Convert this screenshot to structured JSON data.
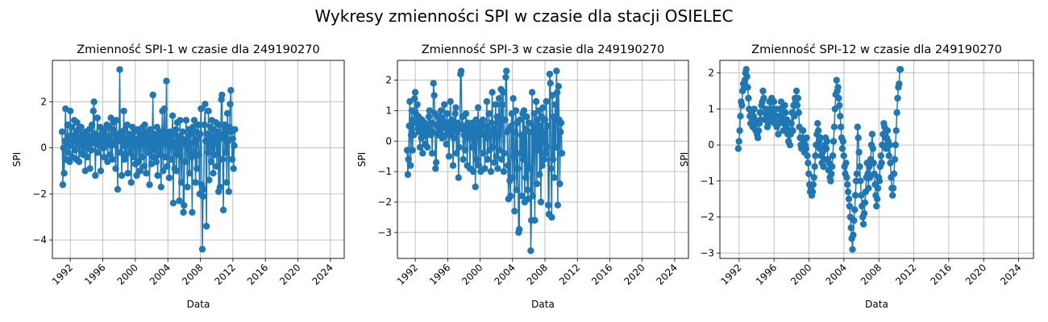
{
  "figure": {
    "suptitle": "Wykresy zmienności SPI w czasie dla stacji OSIELEC"
  },
  "colors": {
    "series": "#1f77b4",
    "grid": "#b0b0b0",
    "axes": "#000000"
  },
  "chart_data": [
    {
      "type": "line",
      "marker": "circle",
      "title": "Zmienność SPI-1 w czasie dla 249190270",
      "xlabel": "Data",
      "ylabel": "SPI",
      "x_range": [
        1989.8,
        2025.7
      ],
      "ylim": [
        -4.8,
        3.8
      ],
      "x_ticks": [
        "1992",
        "1996",
        "2000",
        "2004",
        "2008",
        "2012",
        "2016",
        "2020",
        "2024"
      ],
      "y_ticks": [
        "−4",
        "−2",
        "0",
        "2"
      ],
      "y_tick_values": [
        -4,
        -2,
        0,
        2
      ],
      "grid": true,
      "x_start": 1991.0,
      "x_step_years": 0.08333,
      "values": [
        0.7,
        -1.6,
        0.0,
        -1.1,
        0.3,
        1.7,
        -0.5,
        0.2,
        1.0,
        -0.2,
        0.5,
        -0.6,
        1.6,
        0.1,
        0.9,
        -0.4,
        0.5,
        0.3,
        1.2,
        -0.1,
        0.6,
        -0.5,
        1.1,
        0.2,
        0.8,
        -0.6,
        0.4,
        0.1,
        0.9,
        -0.2,
        0.6,
        -0.3,
        0.2,
        0.5,
        -1.0,
        0.7,
        0.3,
        -0.4,
        0.4,
        0.0,
        0.8,
        -0.9,
        0.5,
        -0.1,
        1.0,
        0.2,
        1.6,
        2.0,
        0.6,
        -1.2,
        0.3,
        0.5,
        1.3,
        -0.2,
        0.4,
        0.1,
        0.9,
        -1.0,
        0.6,
        0.2,
        0.7,
        0.0,
        -0.4,
        0.8,
        0.3,
        0.5,
        1.0,
        -0.6,
        0.2,
        0.9,
        0.4,
        -0.3,
        1.3,
        0.1,
        -0.5,
        0.8,
        1.1,
        0.2,
        0.6,
        -0.9,
        1.2,
        0.4,
        -1.8,
        0.6,
        0.3,
        3.4,
        -0.2,
        0.7,
        -1.2,
        0.5,
        0.1,
        1.6,
        -0.5,
        0.8,
        -0.3,
        0.2,
        1.0,
        -1.1,
        0.4,
        0.6,
        -0.2,
        0.3,
        -1.5,
        0.5,
        0.9,
        -0.4,
        0.2,
        0.7,
        -0.7,
        0.1,
        -1.2,
        0.4,
        0.8,
        -0.6,
        0.3,
        -1.0,
        0.5,
        0.6,
        -0.4,
        0.9,
        0.2,
        -0.8,
        1.0,
        0.4,
        -1.1,
        0.7,
        0.3,
        -0.2,
        0.5,
        -1.6,
        0.8,
        0.1,
        -0.7,
        0.4,
        2.3,
        -0.4,
        0.6,
        -0.1,
        0.3,
        -0.6,
        0.9,
        -1.2,
        0.5,
        0.2,
        -0.3,
        0.7,
        -1.7,
        0.4,
        1.6,
        -1.0,
        0.6,
        1.7,
        -0.4,
        0.2,
        2.9,
        -0.8,
        0.5,
        0.1,
        -1.3,
        0.7,
        0.4,
        -0.5,
        0.3,
        1.4,
        -2.4,
        0.6,
        -0.9,
        0.2,
        0.8,
        -1.0,
        1.1,
        -0.3,
        0.5,
        -2.3,
        1.2,
        0.1,
        -1.5,
        0.4,
        0.7,
        -2.8,
        -2.5,
        0.3,
        -0.6,
        1.2,
        0.1,
        -1.7,
        0.5,
        0.8,
        -1.1,
        0.2,
        0.6,
        -0.4,
        -2.8,
        0.9,
        -0.2,
        1.2,
        0.3,
        -1.5,
        0.7,
        -0.9,
        0.4,
        1.0,
        -0.3,
        -2.0,
        0.6,
        1.7,
        -1.6,
        -4.4,
        -2.1,
        -1.8,
        1.0,
        1.9,
        0.3,
        -3.4,
        0.6,
        -0.2,
        1.6,
        -1.4,
        0.4,
        0.9,
        -0.6,
        1.2,
        0.2,
        -1.1,
        0.8,
        -0.3,
        0.5,
        1.1,
        -0.8,
        0.2,
        0.7,
        -1.9,
        1.0,
        -1.7,
        0.4,
        2.1,
        2.3,
        -0.5,
        -2.7,
        0.6,
        1.0,
        -0.2,
        0.8,
        -1.5,
        1.5,
        0.3,
        -1.9,
        0.9,
        1.9,
        2.5,
        0.7,
        -0.5,
        0.4,
        -0.9,
        0.1,
        0.8
      ]
    },
    {
      "type": "line",
      "marker": "circle",
      "title": "Zmienność SPI-3 w czasie dla 249190270",
      "xlabel": "Data",
      "ylabel": "SPI",
      "x_range": [
        1989.8,
        2025.7
      ],
      "ylim": [
        -3.85,
        2.65
      ],
      "x_ticks": [
        "1992",
        "1996",
        "2000",
        "2004",
        "2008",
        "2012",
        "2016",
        "2020",
        "2024"
      ],
      "y_ticks": [
        "−3",
        "−2",
        "−1",
        "0",
        "1",
        "2"
      ],
      "y_tick_values": [
        -3,
        -2,
        -1,
        0,
        1,
        2
      ],
      "grid": true,
      "x_start": 1991.0,
      "x_step_years": 0.08333,
      "values": [
        -0.3,
        -1.1,
        -0.6,
        0.5,
        1.3,
        -0.8,
        0.2,
        1.0,
        -0.3,
        0.7,
        0.2,
        1.4,
        1.6,
        0.9,
        0.6,
        1.2,
        0.4,
        0.8,
        0.3,
        -0.2,
        0.6,
        0.1,
        0.7,
        -0.4,
        0.5,
        0.2,
        0.6,
        -0.1,
        0.4,
        0.3,
        -0.2,
        0.5,
        0.8,
        1.0,
        0.4,
        0.2,
        0.6,
        -0.4,
        0.3,
        1.9,
        1.5,
        0.9,
        -0.9,
        -0.7,
        0.5,
        0.8,
        0.2,
        0.6,
        0.3,
        0.8,
        1.0,
        0.4,
        0.1,
        0.7,
        0.5,
        1.2,
        0.6,
        0.2,
        -0.1,
        0.9,
        0.4,
        0.3,
        -0.5,
        0.6,
        1.3,
        0.2,
        0.7,
        0.4,
        -0.8,
        0.1,
        0.5,
        0.9,
        1.1,
        -0.4,
        0.3,
        0.6,
        -1.2,
        -0.2,
        0.5,
        2.2,
        2.3,
        0.4,
        0.8,
        -0.6,
        0.2,
        0.5,
        -0.3,
        0.9,
        0.3,
        -0.8,
        0.6,
        0.1,
        0.4,
        -0.9,
        0.3,
        0.5,
        -0.2,
        0.6,
        -1.0,
        0.2,
        0.4,
        -1.5,
        0.7,
        -0.6,
        0.3,
        1.1,
        -0.8,
        0.5,
        0.2,
        -1.0,
        0.6,
        0.3,
        0.7,
        -0.4,
        0.2,
        -0.9,
        0.5,
        0.1,
        1.3,
        -0.6,
        0.4,
        0.9,
        -0.3,
        0.2,
        -1.0,
        0.6,
        1.6,
        -0.2,
        0.4,
        -0.7,
        0.3,
        1.2,
        -0.5,
        0.8,
        -0.9,
        0.2,
        1.4,
        -0.3,
        0.6,
        1.7,
        -0.6,
        1.2,
        1.6,
        -1.0,
        -0.4,
        0.7,
        2.1,
        2.3,
        0.3,
        -0.8,
        -1.9,
        0.4,
        -1.3,
        -1.8,
        0.5,
        0.9,
        -1.2,
        1.4,
        -0.5,
        -2.3,
        0.3,
        1.0,
        -1.6,
        0.6,
        -0.9,
        -3.0,
        -2.9,
        0.7,
        -0.4,
        0.2,
        -1.8,
        0.9,
        -0.6,
        1.0,
        -2.0,
        0.4,
        -1.2,
        0.8,
        -1.6,
        -1.9,
        0.6,
        -0.9,
        0.3,
        -3.6,
        -2.6,
        1.6,
        -1.8,
        0.5,
        0.9,
        -2.6,
        0.3,
        1.3,
        -1.4,
        0.7,
        -0.3,
        1.0,
        -1.1,
        0.5,
        -2.0,
        0.8,
        -0.8,
        1.1,
        0.2,
        -0.6,
        0.7,
        -0.4,
        1.3,
        -0.2,
        0.5,
        -2.1,
        -2.4,
        2.2,
        1.9,
        -0.9,
        -2.5,
        1.5,
        -0.6,
        0.8,
        -1.2,
        1.2,
        -0.2,
        2.3,
        1.6,
        -2.1,
        1.8,
        0.7,
        -1.4,
        0.3,
        0.6,
        -0.4
      ]
    },
    {
      "type": "line",
      "marker": "circle",
      "title": "Zmienność SPI-12 w czasie dla 249190270",
      "xlabel": "Data",
      "ylabel": "SPI",
      "x_range": [
        1989.8,
        2025.7
      ],
      "ylim": [
        -3.15,
        2.35
      ],
      "x_ticks": [
        "1992",
        "1996",
        "2000",
        "2004",
        "2008",
        "2012",
        "2016",
        "2020",
        "2024"
      ],
      "y_ticks": [
        "−3",
        "−2",
        "−1",
        "0",
        "1",
        "2"
      ],
      "y_tick_values": [
        -3,
        -2,
        -1,
        0,
        1,
        2
      ],
      "grid": true,
      "x_start": 1991.9,
      "x_step_years": 0.08333,
      "values": [
        -0.1,
        0.1,
        0.4,
        0.8,
        1.2,
        1.1,
        1.5,
        1.7,
        1.6,
        1.8,
        2.0,
        2.1,
        1.9,
        1.6,
        1.3,
        1.0,
        0.8,
        0.6,
        0.9,
        0.7,
        0.5,
        0.8,
        1.0,
        0.7,
        0.4,
        0.6,
        0.3,
        0.2,
        0.4,
        0.6,
        0.9,
        0.7,
        1.1,
        1.2,
        1.5,
        1.3,
        0.9,
        0.7,
        1.0,
        0.8,
        0.5,
        0.6,
        0.9,
        1.2,
        0.8,
        1.0,
        1.3,
        0.7,
        0.9,
        1.2,
        0.6,
        0.8,
        1.0,
        0.5,
        0.8,
        0.3,
        0.6,
        1.0,
        0.8,
        1.2,
        1.0,
        0.7,
        0.4,
        0.6,
        1.1,
        0.9,
        0.5,
        0.7,
        0.3,
        0.1,
        0.4,
        0.0,
        0.3,
        0.6,
        0.9,
        0.4,
        1.1,
        0.8,
        1.3,
        1.2,
        1.5,
        1.1,
        1.3,
        0.9,
        0.5,
        0.2,
        0.0,
        -0.1,
        0.2,
        0.4,
        0.1,
        -0.2,
        0.0,
        -0.1,
        0.2,
        -0.3,
        -0.5,
        -0.8,
        -1.1,
        -1.3,
        -1.2,
        -1.4,
        -1.3,
        -1.1,
        -0.9,
        -0.6,
        -0.3,
        0.0,
        0.3,
        0.6,
        0.4,
        0.1,
        -0.1,
        0.2,
        -0.3,
        -0.5,
        -0.2,
        -0.6,
        -0.4,
        0.0,
        0.2,
        -0.1,
        0.1,
        -0.4,
        -0.7,
        -0.5,
        -0.9,
        -1.0,
        -0.8,
        -0.6,
        -0.3,
        0.1,
        0.5,
        1.0,
        1.4,
        1.8,
        1.5,
        1.6,
        1.3,
        1.1,
        0.8,
        0.5,
        0.2,
        -0.1,
        0.1,
        -0.3,
        -0.6,
        -0.8,
        -0.5,
        -0.9,
        -1.1,
        -1.3,
        -1.5,
        -1.7,
        -2.0,
        -2.3,
        -2.6,
        -2.9,
        -2.5,
        -2.1,
        -1.8,
        -1.4,
        -1.0,
        -0.8,
        0.5,
        0.2,
        -0.2,
        -0.6,
        -1.0,
        -1.4,
        -1.7,
        -2.0,
        -2.2,
        -1.9,
        -1.6,
        -1.3,
        -0.9,
        -0.5,
        -0.8,
        -1.2,
        -0.6,
        -0.9,
        -0.4,
        0.0,
        0.3,
        -0.1,
        -0.5,
        -0.8,
        -1.1,
        -1.4,
        -1.7,
        -1.5,
        -1.2,
        -0.9,
        -1.0,
        -0.6,
        -0.3,
        -0.5,
        0.0,
        0.3,
        0.6,
        0.5,
        0.2,
        -0.1,
        0.2,
        0.4,
        0.1,
        -0.3,
        0.0,
        -0.5,
        -0.9,
        -1.2,
        -1.4,
        -1.2,
        -0.8,
        -0.4,
        0.0,
        0.4,
        0.9,
        1.3,
        1.6,
        1.7,
        2.1,
        2.1
      ]
    }
  ]
}
